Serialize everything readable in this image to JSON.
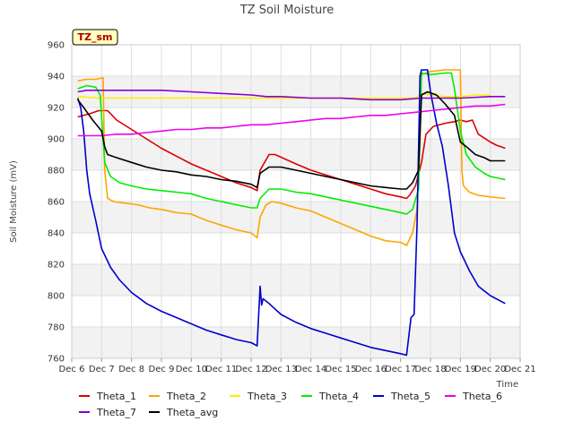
{
  "chart_data": {
    "type": "line",
    "title": "TZ Soil Moisture",
    "xlabel": "Time",
    "ylabel": "Soil Moisture (mV)",
    "badge": "TZ_sm",
    "xlim": [
      6,
      21
    ],
    "ylim": [
      760,
      960
    ],
    "yticks": [
      760,
      780,
      800,
      820,
      840,
      860,
      880,
      900,
      920,
      940,
      960
    ],
    "xticks": [
      {
        "value": 6,
        "label": "Dec 6"
      },
      {
        "value": 7,
        "label": "Dec 7"
      },
      {
        "value": 8,
        "label": "Dec 8"
      },
      {
        "value": 9,
        "label": "Dec 9"
      },
      {
        "value": 10,
        "label": "Dec 10"
      },
      {
        "value": 11,
        "label": "Dec 11"
      },
      {
        "value": 12,
        "label": "Dec 12"
      },
      {
        "value": 13,
        "label": "Dec 13"
      },
      {
        "value": 14,
        "label": "Dec 14"
      },
      {
        "value": 15,
        "label": "Dec 15"
      },
      {
        "value": 16,
        "label": "Dec 16"
      },
      {
        "value": 17,
        "label": "Dec 17"
      },
      {
        "value": 18,
        "label": "Dec 18"
      },
      {
        "value": 19,
        "label": "Dec 19"
      },
      {
        "value": 20,
        "label": "Dec 20"
      },
      {
        "value": 21,
        "label": "Dec 21"
      }
    ],
    "series": [
      {
        "name": "Theta_1",
        "color": "#dd0000",
        "points": [
          [
            6.2,
            914
          ],
          [
            6.6,
            916
          ],
          [
            6.9,
            918
          ],
          [
            7.2,
            918
          ],
          [
            7.5,
            912
          ],
          [
            8.0,
            906
          ],
          [
            8.5,
            900
          ],
          [
            9.0,
            894
          ],
          [
            9.5,
            889
          ],
          [
            10.0,
            884
          ],
          [
            10.5,
            880
          ],
          [
            11.0,
            876
          ],
          [
            11.5,
            872
          ],
          [
            12.0,
            869
          ],
          [
            12.2,
            867
          ],
          [
            12.3,
            880
          ],
          [
            12.6,
            890
          ],
          [
            12.8,
            890
          ],
          [
            13.5,
            884
          ],
          [
            14.0,
            880
          ],
          [
            14.5,
            877
          ],
          [
            15.0,
            874
          ],
          [
            15.5,
            871
          ],
          [
            16.0,
            868
          ],
          [
            16.5,
            865
          ],
          [
            17.0,
            863
          ],
          [
            17.2,
            862
          ],
          [
            17.3,
            864
          ],
          [
            17.5,
            870
          ],
          [
            17.7,
            885
          ],
          [
            17.85,
            903
          ],
          [
            18.1,
            908
          ],
          [
            18.5,
            910
          ],
          [
            18.8,
            911
          ],
          [
            19.0,
            912
          ],
          [
            19.2,
            911
          ],
          [
            19.4,
            912
          ],
          [
            19.6,
            903
          ],
          [
            20.0,
            898
          ],
          [
            20.2,
            896
          ],
          [
            20.5,
            894
          ]
        ]
      },
      {
        "name": "Theta_2",
        "color": "#ffa500",
        "points": [
          [
            6.2,
            937
          ],
          [
            6.5,
            938
          ],
          [
            6.8,
            938
          ],
          [
            7.05,
            939
          ],
          [
            7.1,
            880
          ],
          [
            7.2,
            862
          ],
          [
            7.4,
            860
          ],
          [
            7.8,
            859
          ],
          [
            8.2,
            858
          ],
          [
            8.6,
            856
          ],
          [
            9.0,
            855
          ],
          [
            9.5,
            853
          ],
          [
            10.0,
            852
          ],
          [
            10.5,
            848
          ],
          [
            11.0,
            845
          ],
          [
            11.5,
            842
          ],
          [
            12.0,
            840
          ],
          [
            12.2,
            837
          ],
          [
            12.3,
            850
          ],
          [
            12.5,
            858
          ],
          [
            12.7,
            860
          ],
          [
            13.0,
            859
          ],
          [
            13.5,
            856
          ],
          [
            14.0,
            854
          ],
          [
            14.5,
            850
          ],
          [
            15.0,
            846
          ],
          [
            15.5,
            842
          ],
          [
            16.0,
            838
          ],
          [
            16.5,
            835
          ],
          [
            17.0,
            834
          ],
          [
            17.2,
            832
          ],
          [
            17.4,
            840
          ],
          [
            17.55,
            855
          ],
          [
            17.65,
            900
          ],
          [
            17.7,
            941
          ],
          [
            18.0,
            943
          ],
          [
            18.5,
            944
          ],
          [
            18.9,
            944
          ],
          [
            19.0,
            944
          ],
          [
            19.05,
            880
          ],
          [
            19.1,
            870
          ],
          [
            19.3,
            866
          ],
          [
            19.6,
            864
          ],
          [
            20.0,
            863
          ],
          [
            20.5,
            862
          ]
        ]
      },
      {
        "name": "Theta_3",
        "color": "#ffee00",
        "points": [
          [
            6.2,
            927
          ],
          [
            7.0,
            926
          ],
          [
            8.0,
            926
          ],
          [
            9.0,
            926
          ],
          [
            10.0,
            926
          ],
          [
            11.0,
            926
          ],
          [
            12.0,
            926
          ],
          [
            13.0,
            926
          ],
          [
            14.0,
            926
          ],
          [
            15.0,
            926
          ],
          [
            16.0,
            926
          ],
          [
            17.0,
            926
          ],
          [
            17.5,
            926
          ],
          [
            17.7,
            929
          ],
          [
            18.0,
            928
          ],
          [
            18.5,
            927
          ],
          [
            19.0,
            927
          ],
          [
            19.5,
            928
          ],
          [
            20.0,
            928
          ]
        ]
      },
      {
        "name": "Theta_4",
        "color": "#00ee00",
        "points": [
          [
            6.2,
            932
          ],
          [
            6.5,
            934
          ],
          [
            6.8,
            933
          ],
          [
            6.95,
            928
          ],
          [
            7.1,
            885
          ],
          [
            7.3,
            876
          ],
          [
            7.6,
            872
          ],
          [
            8.0,
            870
          ],
          [
            8.5,
            868
          ],
          [
            9.0,
            867
          ],
          [
            9.5,
            866
          ],
          [
            10.0,
            865
          ],
          [
            10.5,
            862
          ],
          [
            11.0,
            860
          ],
          [
            11.5,
            858
          ],
          [
            12.0,
            856
          ],
          [
            12.2,
            856
          ],
          [
            12.3,
            862
          ],
          [
            12.6,
            868
          ],
          [
            13.0,
            868
          ],
          [
            13.5,
            866
          ],
          [
            14.0,
            865
          ],
          [
            14.5,
            863
          ],
          [
            15.0,
            861
          ],
          [
            15.5,
            859
          ],
          [
            16.0,
            857
          ],
          [
            16.5,
            855
          ],
          [
            17.0,
            853
          ],
          [
            17.2,
            852
          ],
          [
            17.4,
            855
          ],
          [
            17.6,
            868
          ],
          [
            17.7,
            942
          ],
          [
            18.0,
            941
          ],
          [
            18.5,
            942
          ],
          [
            18.7,
            942
          ],
          [
            18.8,
            932
          ],
          [
            19.0,
            905
          ],
          [
            19.2,
            890
          ],
          [
            19.5,
            882
          ],
          [
            19.8,
            878
          ],
          [
            20.0,
            876
          ],
          [
            20.5,
            874
          ]
        ]
      },
      {
        "name": "Theta_5",
        "color": "#0000cc",
        "points": [
          [
            6.2,
            926
          ],
          [
            6.3,
            920
          ],
          [
            6.4,
            905
          ],
          [
            6.5,
            880
          ],
          [
            6.6,
            865
          ],
          [
            6.8,
            848
          ],
          [
            7.0,
            830
          ],
          [
            7.3,
            818
          ],
          [
            7.6,
            810
          ],
          [
            8.0,
            802
          ],
          [
            8.5,
            795
          ],
          [
            9.0,
            790
          ],
          [
            9.5,
            786
          ],
          [
            10.0,
            782
          ],
          [
            10.5,
            778
          ],
          [
            11.0,
            775
          ],
          [
            11.5,
            772
          ],
          [
            12.0,
            770
          ],
          [
            12.2,
            768
          ],
          [
            12.3,
            806
          ],
          [
            12.35,
            794
          ],
          [
            12.4,
            798
          ],
          [
            12.6,
            795
          ],
          [
            13.0,
            788
          ],
          [
            13.5,
            783
          ],
          [
            14.0,
            779
          ],
          [
            14.5,
            776
          ],
          [
            15.0,
            773
          ],
          [
            15.5,
            770
          ],
          [
            16.0,
            767
          ],
          [
            16.5,
            765
          ],
          [
            17.0,
            763
          ],
          [
            17.2,
            762
          ],
          [
            17.35,
            786
          ],
          [
            17.45,
            788
          ],
          [
            17.55,
            845
          ],
          [
            17.65,
            940
          ],
          [
            17.7,
            944
          ],
          [
            17.9,
            944
          ],
          [
            18.0,
            930
          ],
          [
            18.2,
            910
          ],
          [
            18.4,
            895
          ],
          [
            18.6,
            870
          ],
          [
            18.8,
            840
          ],
          [
            19.0,
            828
          ],
          [
            19.3,
            816
          ],
          [
            19.6,
            806
          ],
          [
            20.0,
            800
          ],
          [
            20.3,
            797
          ],
          [
            20.5,
            795
          ]
        ]
      },
      {
        "name": "Theta_6",
        "color": "#ee00ee",
        "points": [
          [
            6.2,
            902
          ],
          [
            6.5,
            902
          ],
          [
            7.0,
            902
          ],
          [
            7.5,
            903
          ],
          [
            8.0,
            903
          ],
          [
            8.5,
            904
          ],
          [
            9.0,
            905
          ],
          [
            9.5,
            906
          ],
          [
            10.0,
            906
          ],
          [
            10.5,
            907
          ],
          [
            11.0,
            907
          ],
          [
            11.5,
            908
          ],
          [
            12.0,
            909
          ],
          [
            12.5,
            909
          ],
          [
            13.0,
            910
          ],
          [
            13.5,
            911
          ],
          [
            14.0,
            912
          ],
          [
            14.5,
            913
          ],
          [
            15.0,
            913
          ],
          [
            15.5,
            914
          ],
          [
            16.0,
            915
          ],
          [
            16.5,
            915
          ],
          [
            17.0,
            916
          ],
          [
            17.5,
            917
          ],
          [
            18.0,
            918
          ],
          [
            18.5,
            919
          ],
          [
            19.0,
            920
          ],
          [
            19.5,
            921
          ],
          [
            20.0,
            921
          ],
          [
            20.5,
            922
          ]
        ]
      },
      {
        "name": "Theta_7",
        "color": "#8800cc",
        "points": [
          [
            6.2,
            930
          ],
          [
            6.5,
            931
          ],
          [
            7.0,
            931
          ],
          [
            8.0,
            931
          ],
          [
            9.0,
            931
          ],
          [
            10.0,
            930
          ],
          [
            11.0,
            929
          ],
          [
            12.0,
            928
          ],
          [
            12.5,
            927
          ],
          [
            13.0,
            927
          ],
          [
            14.0,
            926
          ],
          [
            15.0,
            926
          ],
          [
            16.0,
            925
          ],
          [
            17.0,
            925
          ],
          [
            17.7,
            926
          ],
          [
            18.0,
            926
          ],
          [
            19.0,
            926
          ],
          [
            20.0,
            927
          ],
          [
            20.5,
            927
          ]
        ]
      },
      {
        "name": "Theta_avg",
        "color": "#000000",
        "points": [
          [
            6.2,
            925
          ],
          [
            6.4,
            920
          ],
          [
            6.7,
            912
          ],
          [
            7.0,
            905
          ],
          [
            7.1,
            895
          ],
          [
            7.2,
            890
          ],
          [
            7.5,
            888
          ],
          [
            8.0,
            885
          ],
          [
            8.5,
            882
          ],
          [
            9.0,
            880
          ],
          [
            9.5,
            879
          ],
          [
            10.0,
            877
          ],
          [
            10.5,
            876
          ],
          [
            11.0,
            874
          ],
          [
            11.5,
            873
          ],
          [
            12.0,
            871
          ],
          [
            12.2,
            869
          ],
          [
            12.3,
            878
          ],
          [
            12.6,
            882
          ],
          [
            13.0,
            882
          ],
          [
            13.5,
            880
          ],
          [
            14.0,
            878
          ],
          [
            14.5,
            876
          ],
          [
            15.0,
            874
          ],
          [
            15.5,
            872
          ],
          [
            16.0,
            870
          ],
          [
            16.5,
            869
          ],
          [
            17.0,
            868
          ],
          [
            17.2,
            868
          ],
          [
            17.4,
            872
          ],
          [
            17.6,
            880
          ],
          [
            17.7,
            928
          ],
          [
            17.9,
            930
          ],
          [
            18.2,
            928
          ],
          [
            18.5,
            922
          ],
          [
            18.8,
            915
          ],
          [
            19.0,
            898
          ],
          [
            19.2,
            895
          ],
          [
            19.5,
            890
          ],
          [
            19.8,
            888
          ],
          [
            20.0,
            886
          ],
          [
            20.5,
            886
          ]
        ]
      }
    ]
  }
}
